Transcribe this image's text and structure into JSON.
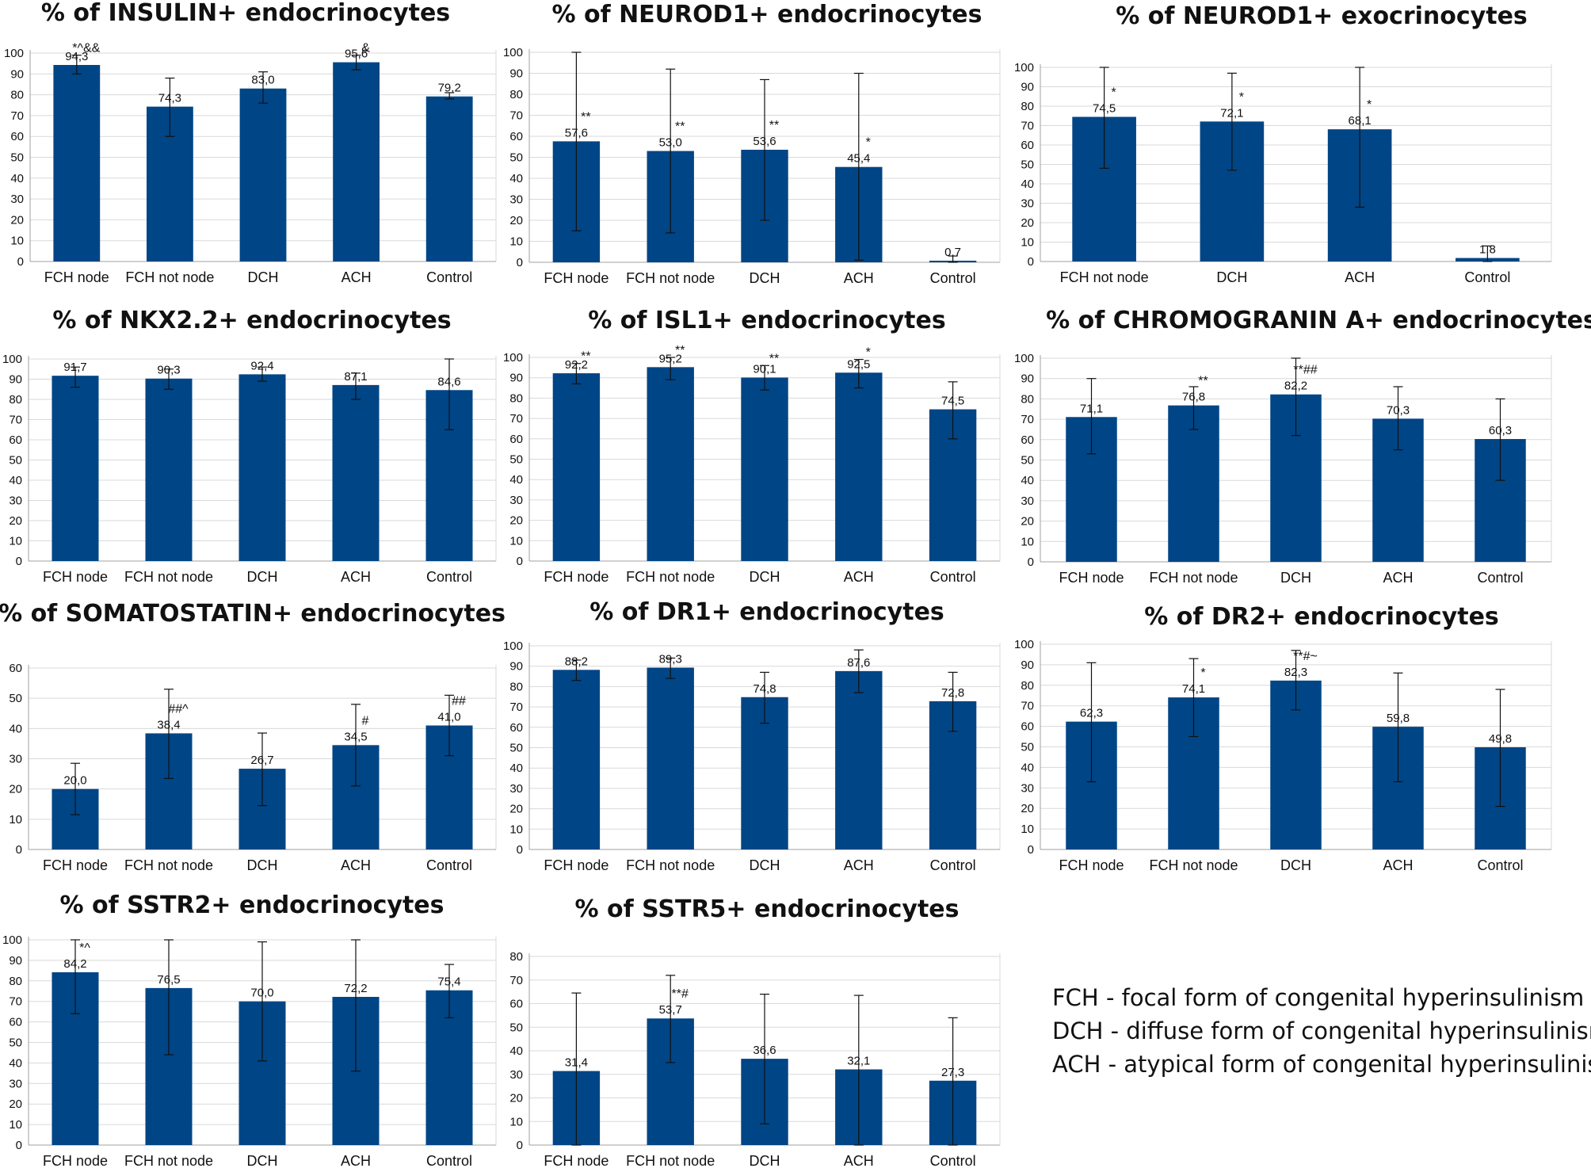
{
  "colors": {
    "bar": "#004586",
    "axis": "#a0a0a0",
    "grid": "#d9d9d9",
    "text": "#111111",
    "error": "#111111"
  },
  "legend": [
    "FCH - focal form of congenital hyperinsulinism",
    "DCH - diffuse form of congenital hyperinsulinism",
    "ACH - atypical form of congenital hyperinsulinism"
  ],
  "chart_data": [
    {
      "type": "bar",
      "title": "% of INSULIN+ endocrinocytes",
      "categories": [
        "FCH node",
        "FCH not node",
        "DCH",
        "ACH",
        "Control"
      ],
      "values": [
        94.3,
        74.3,
        83.0,
        95.6,
        79.2
      ],
      "value_labels": [
        "94,3",
        "74,3",
        "83,0",
        "95,6",
        "79,2"
      ],
      "error_low": [
        90,
        60,
        76,
        92,
        78
      ],
      "error_high": [
        99,
        88,
        91,
        99,
        81
      ],
      "significance": [
        "*^&&",
        "",
        "",
        "&",
        ""
      ],
      "ylim": [
        0,
        100
      ],
      "yticks": [
        0,
        10,
        20,
        30,
        40,
        50,
        60,
        70,
        80,
        90,
        100
      ]
    },
    {
      "type": "bar",
      "title": "% of NEUROD1+ endocrinocytes",
      "categories": [
        "FCH node",
        "FCH not node",
        "DCH",
        "ACH",
        "Control"
      ],
      "values": [
        57.6,
        53.0,
        53.6,
        45.4,
        0.7
      ],
      "value_labels": [
        "57,6",
        "53,0",
        "53,6",
        "45,4",
        "0,7"
      ],
      "error_low": [
        15,
        14,
        20,
        1,
        0
      ],
      "error_high": [
        100,
        92,
        87,
        90,
        3
      ],
      "significance": [
        "**",
        "**",
        "**",
        "*",
        ""
      ],
      "ylim": [
        0,
        100
      ],
      "yticks": [
        0,
        10,
        20,
        30,
        40,
        50,
        60,
        70,
        80,
        90,
        100
      ]
    },
    {
      "type": "bar",
      "title": "% of NEUROD1+ exocrinocytes",
      "categories": [
        "FCH not node",
        "DCH",
        "ACH",
        "Control"
      ],
      "values": [
        74.5,
        72.1,
        68.1,
        1.8
      ],
      "value_labels": [
        "74,5",
        "72,1",
        "68,1",
        "1,8"
      ],
      "error_low": [
        48,
        47,
        28,
        0
      ],
      "error_high": [
        100,
        97,
        100,
        8
      ],
      "significance": [
        "*",
        "*",
        "*",
        ""
      ],
      "ylim": [
        0,
        100
      ],
      "yticks": [
        0,
        10,
        20,
        30,
        40,
        50,
        60,
        70,
        80,
        90,
        100
      ]
    },
    {
      "type": "bar",
      "title": "% of NKX2.2+ endocrinocytes",
      "categories": [
        "FCH node",
        "FCH not node",
        "DCH",
        "ACH",
        "Control"
      ],
      "values": [
        91.7,
        90.3,
        92.4,
        87.1,
        84.6
      ],
      "value_labels": [
        "91,7",
        "90,3",
        "92,4",
        "87,1",
        "84,6"
      ],
      "error_low": [
        86,
        85,
        89,
        80,
        65
      ],
      "error_high": [
        96,
        95,
        96,
        93,
        100
      ],
      "significance": [
        "",
        "",
        "",
        "",
        ""
      ],
      "ylim": [
        0,
        100
      ],
      "yticks": [
        0,
        10,
        20,
        30,
        40,
        50,
        60,
        70,
        80,
        90,
        100
      ]
    },
    {
      "type": "bar",
      "title": "% of ISL1+ endocrinocytes",
      "categories": [
        "FCH node",
        "FCH not node",
        "DCH",
        "ACH",
        "Control"
      ],
      "values": [
        92.2,
        95.2,
        90.1,
        92.5,
        74.5
      ],
      "value_labels": [
        "92,2",
        "95,2",
        "90,1",
        "92,5",
        "74,5"
      ],
      "error_low": [
        87,
        89,
        84,
        85,
        60
      ],
      "error_high": [
        97,
        100,
        96,
        99,
        88
      ],
      "significance": [
        "**",
        "**",
        "**",
        "*",
        ""
      ],
      "ylim": [
        0,
        100
      ],
      "yticks": [
        0,
        10,
        20,
        30,
        40,
        50,
        60,
        70,
        80,
        90,
        100
      ]
    },
    {
      "type": "bar",
      "title": "% of CHROMOGRANIN A+ endocrinocytes",
      "categories": [
        "FCH node",
        "FCH not node",
        "DCH",
        "ACH",
        "Control"
      ],
      "values": [
        71.1,
        76.8,
        82.2,
        70.3,
        60.3
      ],
      "value_labels": [
        "71,1",
        "76,8",
        "82,2",
        "70,3",
        "60,3"
      ],
      "error_low": [
        53,
        65,
        62,
        55,
        40
      ],
      "error_high": [
        90,
        86,
        100,
        86,
        80
      ],
      "significance": [
        "",
        "**",
        "**##",
        "",
        ""
      ],
      "ylim": [
        0,
        100
      ],
      "yticks": [
        0,
        10,
        20,
        30,
        40,
        50,
        60,
        70,
        80,
        90,
        100
      ]
    },
    {
      "type": "bar",
      "title": "% of SOMATOSTATIN+ endocrinocytes",
      "categories": [
        "FCH node",
        "FCH not node",
        "DCH",
        "ACH",
        "Control"
      ],
      "values": [
        20.0,
        38.4,
        26.7,
        34.5,
        41.0
      ],
      "value_labels": [
        "20,0",
        "38,4",
        "26,7",
        "34,5",
        "41,0"
      ],
      "error_low": [
        11.5,
        23.5,
        14.5,
        21,
        31
      ],
      "error_high": [
        28.5,
        53,
        38.5,
        48,
        51
      ],
      "significance": [
        "",
        "##^",
        "",
        "#",
        "##"
      ],
      "ylim": [
        0,
        60
      ],
      "yticks": [
        0,
        10,
        20,
        30,
        40,
        50,
        60
      ]
    },
    {
      "type": "bar",
      "title": "% of DR1+ endocrinocytes",
      "categories": [
        "FCH node",
        "FCH not node",
        "DCH",
        "ACH",
        "Control"
      ],
      "values": [
        88.2,
        89.3,
        74.8,
        87.6,
        72.8
      ],
      "value_labels": [
        "88,2",
        "89,3",
        "74,8",
        "87,6",
        "72,8"
      ],
      "error_low": [
        83,
        84,
        62,
        77,
        58
      ],
      "error_high": [
        93,
        94,
        87,
        98,
        87
      ],
      "significance": [
        "",
        "",
        "",
        "",
        ""
      ],
      "ylim": [
        0,
        100
      ],
      "yticks": [
        0,
        10,
        20,
        30,
        40,
        50,
        60,
        70,
        80,
        90,
        100
      ]
    },
    {
      "type": "bar",
      "title": "% of DR2+ endocrinocytes",
      "categories": [
        "FCH node",
        "FCH not node",
        "DCH",
        "ACH",
        "Control"
      ],
      "values": [
        62.3,
        74.1,
        82.3,
        59.8,
        49.8
      ],
      "value_labels": [
        "62,3",
        "74,1",
        "82,3",
        "59,8",
        "49,8"
      ],
      "error_low": [
        33,
        55,
        68,
        33,
        21
      ],
      "error_high": [
        91,
        93,
        97,
        86,
        78
      ],
      "significance": [
        "",
        "*",
        "**#~",
        "",
        ""
      ],
      "ylim": [
        0,
        100
      ],
      "yticks": [
        0,
        10,
        20,
        30,
        40,
        50,
        60,
        70,
        80,
        90,
        100
      ]
    },
    {
      "type": "bar",
      "title": "% of SSTR2+ endocrinocytes",
      "categories": [
        "FCH node",
        "FCH not node",
        "DCH",
        "ACH",
        "Control"
      ],
      "values": [
        84.2,
        76.5,
        70.0,
        72.2,
        75.4
      ],
      "value_labels": [
        "84,2",
        "76,5",
        "70,0",
        "72,2",
        "75,4"
      ],
      "error_low": [
        64,
        44,
        41,
        36,
        62
      ],
      "error_high": [
        100,
        100,
        99,
        100,
        88
      ],
      "significance": [
        "*^",
        "",
        "",
        "",
        ""
      ],
      "ylim": [
        0,
        100
      ],
      "yticks": [
        0,
        10,
        20,
        30,
        40,
        50,
        60,
        70,
        80,
        90,
        100
      ]
    },
    {
      "type": "bar",
      "title": "% of SSTR5+ endocrinocytes",
      "categories": [
        "FCH node",
        "FCH not node",
        "DCH",
        "ACH",
        "Control"
      ],
      "values": [
        31.4,
        53.7,
        36.6,
        32.1,
        27.3
      ],
      "value_labels": [
        "31,4",
        "53,7",
        "36,6",
        "32,1",
        "27,3"
      ],
      "error_low": [
        0,
        35,
        9,
        0,
        0
      ],
      "error_high": [
        64.5,
        72,
        64,
        63.5,
        54
      ],
      "significance": [
        "",
        "**#",
        "",
        "",
        ""
      ],
      "ylim": [
        0,
        80
      ],
      "yticks": [
        0,
        10,
        20,
        30,
        40,
        50,
        60,
        70,
        80
      ]
    }
  ]
}
